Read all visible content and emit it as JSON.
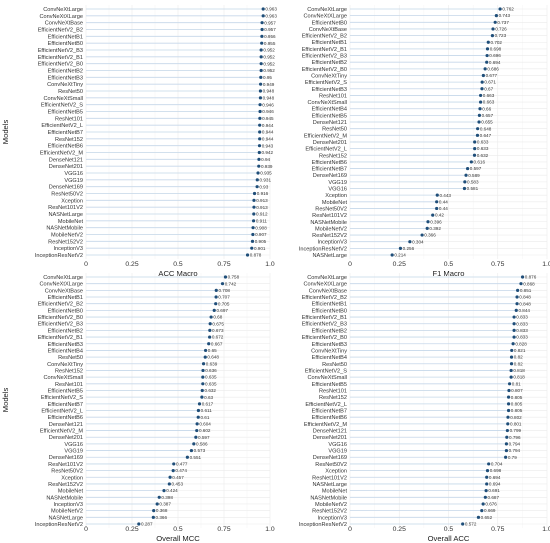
{
  "colors": {
    "dot": "#1f4e79",
    "segment": "#c6d8ea",
    "grid": "#ebebeb"
  },
  "chart_data": [
    {
      "type": "scatter",
      "xlabel": "ACC Macro",
      "ylabel": "Models",
      "xlim": [
        0,
        1
      ],
      "xticks": [
        "0",
        "0.25",
        "0.5",
        "0.75",
        "1.0"
      ],
      "categories": [
        "ConvNeXtLarge",
        "ConvNeXtXLarge",
        "ConvNeXtBase",
        "EfficientNetV2_B2",
        "EfficientNetB1",
        "EfficientNetB0",
        "EfficientNetV2_B3",
        "EfficientNetV2_B1",
        "EfficientNetV2_B0",
        "EfficientNetB2",
        "EfficientNetB3",
        "ConvNeXtTiny",
        "ResNet50",
        "ConvNeXtSmall",
        "EfficientNetV2_S",
        "EfficientNetB5",
        "ResNet101",
        "EfficientNetV2_L",
        "EfficientNetB7",
        "ResNet152",
        "EfficientNetB6",
        "EfficientNetV2_M",
        "DenseNet121",
        "DenseNet201",
        "VGG16",
        "VGG19",
        "DenseNet169",
        "ResNet50V2",
        "Xception",
        "ResNet101V2",
        "NASNetLarge",
        "MobileNet",
        "NASNetMobile",
        "MobileNetV2",
        "ResNet152V2",
        "InceptionV3",
        "InceptionResNetV2"
      ],
      "values": [
        0.963,
        0.963,
        0.957,
        0.957,
        0.956,
        0.955,
        0.952,
        0.952,
        0.952,
        0.952,
        0.95,
        0.949,
        0.948,
        0.948,
        0.946,
        0.946,
        0.945,
        0.944,
        0.944,
        0.944,
        0.943,
        0.942,
        0.94,
        0.939,
        0.935,
        0.931,
        0.93,
        0.916,
        0.913,
        0.913,
        0.912,
        0.911,
        0.908,
        0.907,
        0.905,
        0.901,
        0.878
      ],
      "labels": [
        "0.963",
        "0.963",
        "0.957",
        "0.957",
        "0.956",
        "0.955",
        "0.952",
        "0.952",
        "0.952",
        "0.952",
        "0.95",
        "0.949",
        "0.948",
        "0.948",
        "0.946",
        "0.946",
        "0.945",
        "0.944",
        "0.944",
        "0.944",
        "0.943",
        "0.942",
        "0.94",
        "0.939",
        "0.935",
        "0.931",
        "0.93",
        "0.916",
        "0.913",
        "0.913",
        "0.912",
        "0.911",
        "0.908",
        "0.907",
        "0.905",
        "0.901",
        "0.878"
      ]
    },
    {
      "type": "scatter",
      "xlabel": "F1 Macro",
      "ylabel": "",
      "xlim": [
        0,
        1
      ],
      "xticks": [
        "0",
        "0.25",
        "0.5",
        "0.75",
        "1.0"
      ],
      "categories": [
        "ConvNeXtLarge",
        "ConvNeXtXLarge",
        "EfficientNetB0",
        "ConvNeXtBase",
        "EfficientNetV2_B2",
        "EfficientNetB1",
        "EfficientNetV2_B1",
        "EfficientNetV2_B3",
        "EfficientNetB2",
        "EfficientNetV2_B0",
        "ConvNeXtTiny",
        "EfficientNetV2_S",
        "EfficientNetB3",
        "ResNet101",
        "ConvNeXtSmall",
        "EfficientNetB4",
        "EfficientNetB5",
        "DenseNet121",
        "ResNet50",
        "EfficientNetV2_M",
        "DenseNet201",
        "EfficientNetV2_L",
        "ResNet152",
        "EfficientNetB6",
        "EfficientNetB7",
        "DenseNet169",
        "VGG19",
        "VGG16",
        "Xception",
        "MobileNet",
        "ResNet50V2",
        "ResNet101V2",
        "NASNetMobile",
        "MobileNetV2",
        "ResNet152V2",
        "InceptionV3",
        "InceptionResNetV2",
        "NASNetLarge"
      ],
      "values": [
        0.762,
        0.743,
        0.737,
        0.726,
        0.723,
        0.702,
        0.698,
        0.696,
        0.694,
        0.686,
        0.677,
        0.671,
        0.67,
        0.663,
        0.663,
        0.66,
        0.657,
        0.655,
        0.648,
        0.647,
        0.633,
        0.633,
        0.632,
        0.616,
        0.597,
        0.589,
        0.583,
        0.581,
        0.443,
        0.44,
        0.44,
        0.42,
        0.396,
        0.392,
        0.366,
        0.304,
        0.256,
        0.214
      ],
      "labels": [
        "0.762",
        "0.743",
        "0.737",
        "0.726",
        "0.723",
        "0.702",
        "0.698",
        "0.696",
        "0.694",
        "0.686",
        "0.677",
        "0.671",
        "0.67",
        "0.663",
        "0.663",
        "0.66",
        "0.657",
        "0.655",
        "0.648",
        "0.647",
        "0.633",
        "0.633",
        "0.632",
        "0.616",
        "0.597",
        "0.589",
        "0.583",
        "0.581",
        "0.443",
        "0.44",
        "0.44",
        "0.42",
        "0.396",
        "0.392",
        "0.366",
        "0.304",
        "0.256",
        "0.214"
      ]
    },
    {
      "type": "scatter",
      "xlabel": "Overall MCC",
      "ylabel": "Models",
      "xlim": [
        0,
        1
      ],
      "xticks": [
        "0",
        "0.25",
        "0.5",
        "0.75",
        "1.0"
      ],
      "categories": [
        "ConvNeXtLarge",
        "ConvNeXtXLarge",
        "ConvNeXtBase",
        "EfficientNetB1",
        "EfficientNetV2_B2",
        "EfficientNetB0",
        "EfficientNetV2_B0",
        "EfficientNetV2_B3",
        "EfficientNetB2",
        "EfficientNetV2_B1",
        "EfficientNetB3",
        "EfficientNetB4",
        "ResNet50",
        "ConvNeXtTiny",
        "ResNet152",
        "ConvNeXtSmall",
        "ResNet101",
        "EfficientNetB5",
        "EfficientNetV2_S",
        "EfficientNetB7",
        "EfficientNetV2_L",
        "EfficientNetB6",
        "DenseNet121",
        "EfficientNetV2_M",
        "DenseNet201",
        "VGG16",
        "VGG19",
        "DenseNet169",
        "ResNet101V2",
        "ResNet50V2",
        "Xception",
        "ResNet152V2",
        "MobileNet",
        "NASNetMobile",
        "InceptionV3",
        "MobileNetV2",
        "NASNetLarge",
        "InceptionResNetV2"
      ],
      "values": [
        0.758,
        0.742,
        0.708,
        0.707,
        0.705,
        0.697,
        0.68,
        0.675,
        0.673,
        0.672,
        0.667,
        0.65,
        0.648,
        0.639,
        0.636,
        0.635,
        0.635,
        0.632,
        0.63,
        0.617,
        0.611,
        0.61,
        0.604,
        0.602,
        0.597,
        0.586,
        0.573,
        0.551,
        0.477,
        0.474,
        0.457,
        0.453,
        0.424,
        0.398,
        0.387,
        0.368,
        0.366,
        0.287
      ],
      "labels": [
        "0.758",
        "0.742",
        "0.708",
        "0.707",
        "0.705",
        "0.697",
        "0.68",
        "0.675",
        "0.673",
        "0.672",
        "0.667",
        "0.65",
        "0.648",
        "0.639",
        "0.636",
        "0.635",
        "0.635",
        "0.632",
        "0.63",
        "0.617",
        "0.611",
        "0.61",
        "0.604",
        "0.602",
        "0.597",
        "0.586",
        "0.573",
        "0.551",
        "0.477",
        "0.474",
        "0.457",
        "0.453",
        "0.424",
        "0.398",
        "0.387",
        "0.368",
        "0.366",
        "0.287"
      ]
    },
    {
      "type": "scatter",
      "xlabel": "Overall ACC",
      "ylabel": "",
      "xlim": [
        0,
        1
      ],
      "xticks": [
        "0",
        "0.25",
        "0.5",
        "0.75",
        "1.0"
      ],
      "categories": [
        "ConvNeXtLarge",
        "ConvNeXtXLarge",
        "ConvNeXtBase",
        "EfficientNetV2_B2",
        "EfficientNetB1",
        "EfficientNetB0",
        "EfficientNetV2_B1",
        "EfficientNetV2_B3",
        "EfficientNetB2",
        "EfficientNetV2_B0",
        "EfficientNetB3",
        "ConvNeXtTiny",
        "EfficientNetB4",
        "ResNet50",
        "EfficientNetV2_S",
        "ConvNeXtSmall",
        "EfficientNetB5",
        "ResNet101",
        "ResNet152",
        "EfficientNetV2_L",
        "EfficientNetB7",
        "EfficientNetB6",
        "EfficientNetV2_M",
        "DenseNet121",
        "DenseNet201",
        "VGG16",
        "VGG19",
        "DenseNet169",
        "ResNet50V2",
        "Xception",
        "ResNet101V2",
        "NASNetLarge",
        "MobileNet",
        "NASNetMobile",
        "MobileNetV2",
        "ResNet152V2",
        "InceptionV3",
        "InceptionResNetV2"
      ],
      "values": [
        0.876,
        0.868,
        0.851,
        0.848,
        0.848,
        0.844,
        0.833,
        0.833,
        0.833,
        0.833,
        0.828,
        0.821,
        0.82,
        0.82,
        0.818,
        0.818,
        0.81,
        0.807,
        0.805,
        0.805,
        0.805,
        0.802,
        0.801,
        0.799,
        0.796,
        0.794,
        0.794,
        0.79,
        0.704,
        0.698,
        0.694,
        0.694,
        0.691,
        0.687,
        0.676,
        0.669,
        0.652,
        0.572
      ],
      "labels": [
        "0.876",
        "0.868",
        "0.851",
        "0.848",
        "0.848",
        "0.844",
        "0.833",
        "0.833",
        "0.833",
        "0.833",
        "0.828",
        "0.821",
        "0.82",
        "0.82",
        "0.818",
        "0.818",
        "0.81",
        "0.807",
        "0.805",
        "0.805",
        "0.805",
        "0.802",
        "0.801",
        "0.799",
        "0.796",
        "0.794",
        "0.794",
        "0.79",
        "0.704",
        "0.698",
        "0.694",
        "0.694",
        "0.691",
        "0.687",
        "0.676",
        "0.669",
        "0.652",
        "0.572"
      ]
    }
  ]
}
